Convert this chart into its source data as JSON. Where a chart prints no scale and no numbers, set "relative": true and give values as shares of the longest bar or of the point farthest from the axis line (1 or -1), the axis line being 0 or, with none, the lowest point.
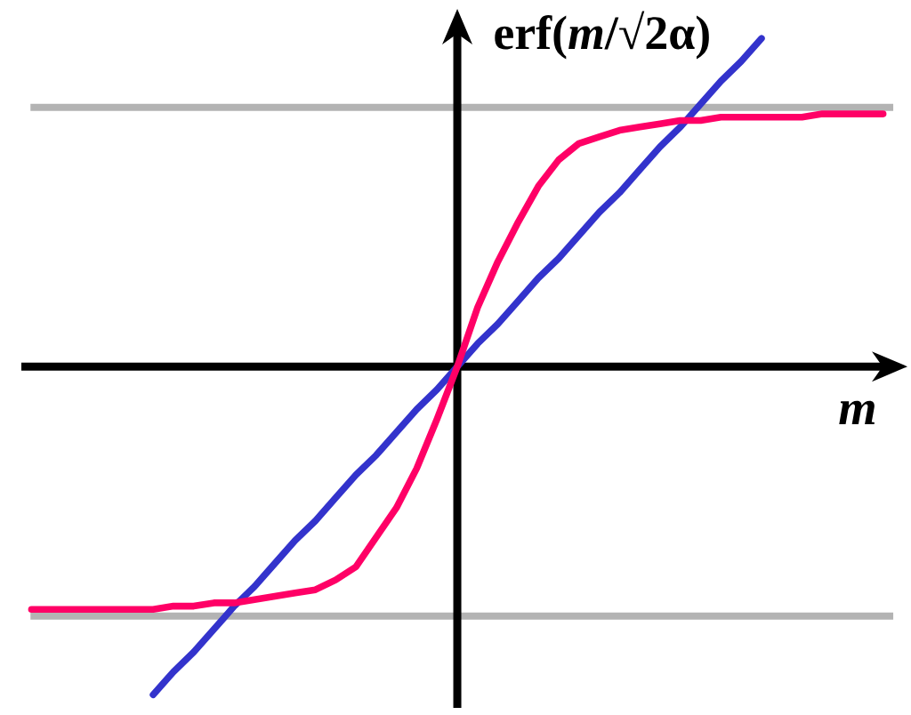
{
  "chart_data": {
    "type": "line",
    "xlabel": "m",
    "ylabel": "erf(*m*/√2α)",
    "relative": true,
    "categories": [
      null,
      null,
      null,
      null,
      null,
      null,
      null,
      null,
      null,
      null,
      null,
      null,
      null,
      null,
      null,
      null,
      null,
      null,
      null,
      null,
      null,
      null,
      null,
      null,
      null,
      null,
      null,
      null,
      null,
      null,
      null,
      null,
      null,
      null,
      null,
      null,
      null,
      null,
      null,
      null,
      null,
      null,
      null
    ],
    "series": [
      {
        "color": "#3333cc",
        "values": [
          null,
          null,
          null,
          null,
          null,
          null,
          -1,
          -0.93,
          -0.87,
          -0.8,
          -0.73,
          -0.67,
          -0.6,
          -0.53,
          -0.47,
          -0.4,
          -0.33,
          -0.27,
          -0.2,
          -0.13,
          -0.07,
          0,
          0.07,
          0.13,
          0.2,
          0.27,
          0.33,
          0.4,
          0.47,
          0.53,
          0.6,
          0.67,
          0.73,
          0.8,
          0.87,
          0.93,
          1,
          null,
          null,
          null,
          null,
          null,
          null
        ]
      },
      {
        "color": "#ff0066",
        "values": [
          -0.74,
          -0.74,
          -0.74,
          -0.74,
          -0.74,
          -0.74,
          -0.74,
          -0.73,
          -0.73,
          -0.72,
          -0.72,
          -0.71,
          -0.7,
          -0.69,
          -0.68,
          -0.65,
          -0.61,
          -0.52,
          -0.43,
          -0.31,
          -0.16,
          0,
          0.18,
          0.32,
          0.44,
          0.55,
          0.63,
          0.68,
          0.7,
          0.72,
          0.73,
          0.74,
          0.75,
          0.75,
          0.76,
          0.76,
          0.76,
          0.76,
          0.76,
          0.77,
          0.77,
          0.77,
          0.77
        ]
      }
    ],
    "ref_lines": [
      {
        "axis": "y",
        "value": 0.79,
        "color": "#b3b3b3"
      },
      {
        "axis": "y",
        "value": -0.76,
        "color": "#b3b3b3"
      }
    ]
  }
}
